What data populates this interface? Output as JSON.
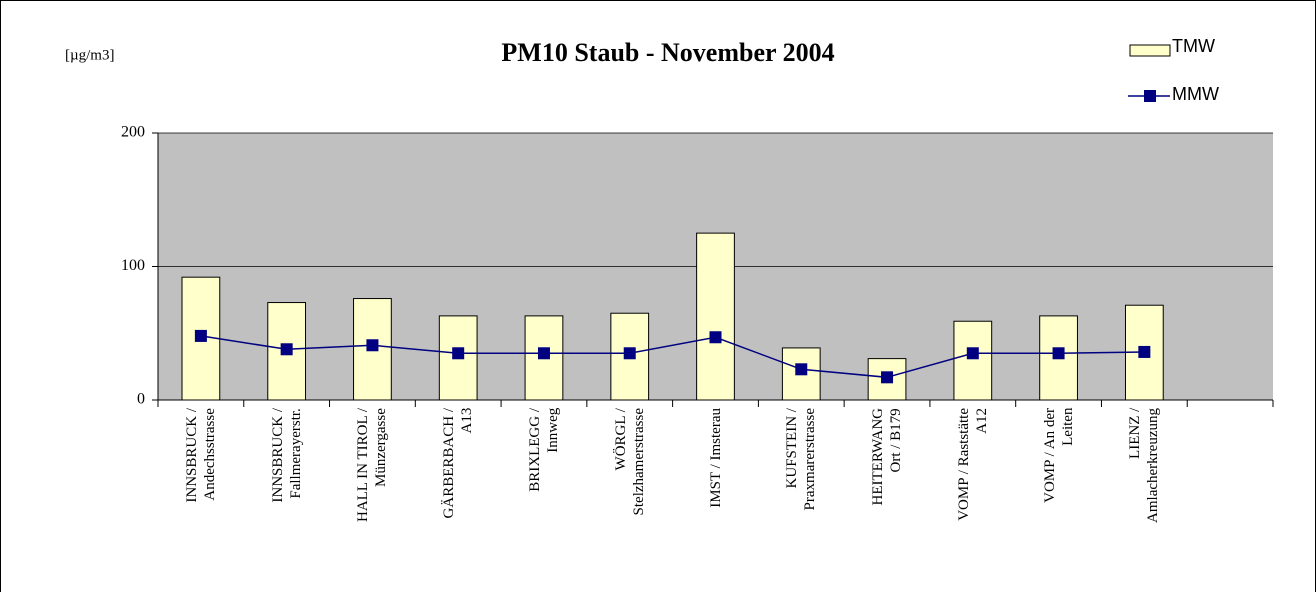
{
  "chart_data": {
    "type": "bar_line",
    "title": "PM10 Staub - November 2004",
    "y_label": "[µg/m3]",
    "categories": [
      "INNSBRUCK /\nAndechsstrasse",
      "INNSBRUCK /\nFallmerayerstr.",
      "HALL IN TIROL /\nMünzergasse",
      "GÄRBERBACH /\nA13",
      "BRIXLEGG /\nInnweg",
      "WÖRGL /\nStelzhamerstrasse",
      "IMST / Imsterau",
      "KUFSTEIN /\nPraxmarerstrasse",
      "HEITERWANG\nOrt / B179",
      "VOMP / Raststätte\nA12",
      "VOMP / An der\nLeiten",
      "LIENZ /\nAmlacherkreuzung",
      null
    ],
    "series": [
      {
        "name": "TMW",
        "type": "bar",
        "color": "#ffffcc",
        "values": [
          92,
          73,
          76,
          63,
          63,
          65,
          125,
          39,
          31,
          59,
          63,
          71,
          null
        ]
      },
      {
        "name": "MMW",
        "type": "line",
        "color": "#000080",
        "values": [
          48,
          38,
          41,
          35,
          35,
          35,
          47,
          23,
          17,
          35,
          35,
          36,
          null
        ]
      }
    ],
    "ylim": [
      0,
      200
    ],
    "yticks": [
      0,
      100,
      200
    ],
    "grid": true,
    "legend": "top-right",
    "background": "#c0c0c0"
  }
}
